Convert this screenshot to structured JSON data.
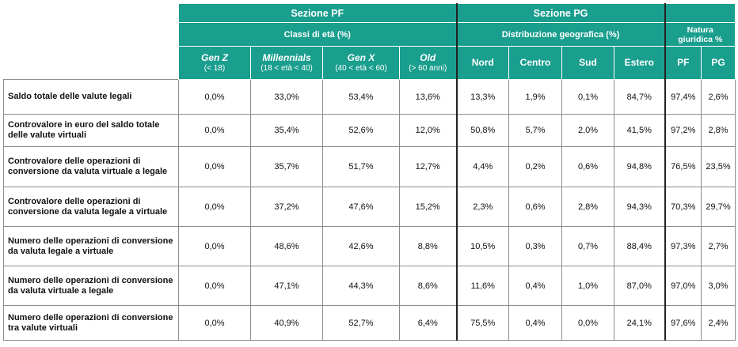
{
  "header": {
    "section_pf": "Sezione PF",
    "section_pg": "Sezione PG",
    "classi_eta": "Classi di età (%)",
    "distribuzione": "Distribuzione geografica (%)",
    "natura_line1": "Natura",
    "natura_line2": "giuridica %",
    "columns": [
      {
        "main": "Gen Z",
        "sub": "(< 18)"
      },
      {
        "main": "Millennials",
        "sub": "(18 < età < 40)"
      },
      {
        "main": "Gen X",
        "sub": "(40 < età < 60)"
      },
      {
        "main": "Old",
        "sub": "(> 60 anni)"
      },
      {
        "main": "Nord"
      },
      {
        "main": "Centro"
      },
      {
        "main": "Sud"
      },
      {
        "main": "Estero"
      },
      {
        "main": "PF"
      },
      {
        "main": "PG"
      }
    ]
  },
  "rows": [
    {
      "label": "Saldo totale delle valute legali",
      "values": [
        "0,0%",
        "33,0%",
        "53,4%",
        "13,6%",
        "13,3%",
        "1,9%",
        "0,1%",
        "84,7%",
        "97,4%",
        "2,6%"
      ]
    },
    {
      "label": "Controvalore in euro del saldo totale delle valute virtuali",
      "values": [
        "0,0%",
        "35,4%",
        "52,6%",
        "12,0%",
        "50,8%",
        "5,7%",
        "2,0%",
        "41,5%",
        "97,2%",
        "2,8%"
      ]
    },
    {
      "label": "Controvalore delle operazioni di conversione da valuta virtuale a legale",
      "values": [
        "0,0%",
        "35,7%",
        "51,7%",
        "12,7%",
        "4,4%",
        "0,2%",
        "0,6%",
        "94,8%",
        "76,5%",
        "23,5%"
      ]
    },
    {
      "label": "Controvalore delle operazioni di conversione da valuta legale a virtuale",
      "values": [
        "0,0%",
        "37,2%",
        "47,6%",
        "15,2%",
        "2,3%",
        "0,6%",
        "2,8%",
        "94,3%",
        "70,3%",
        "29,7%"
      ]
    },
    {
      "label": "Numero delle operazioni di conversione da valuta legale a virtuale",
      "values": [
        "0,0%",
        "48,6%",
        "42,6%",
        "8,8%",
        "10,5%",
        "0,3%",
        "0,7%",
        "88,4%",
        "97,3%",
        "2,7%"
      ]
    },
    {
      "label": "Numero delle operazioni di conversione da valuta virtuale a legale",
      "values": [
        "0,0%",
        "47,1%",
        "44,3%",
        "8,6%",
        "11,6%",
        "0,4%",
        "1,0%",
        "87,0%",
        "97,0%",
        "3,0%"
      ]
    },
    {
      "label": "Numero delle operazioni di conversione tra valute virtuali",
      "values": [
        "0,0%",
        "40,9%",
        "52,7%",
        "6,4%",
        "75,5%",
        "0,4%",
        "0,0%",
        "24,1%",
        "97,6%",
        "2,4%"
      ]
    }
  ]
}
